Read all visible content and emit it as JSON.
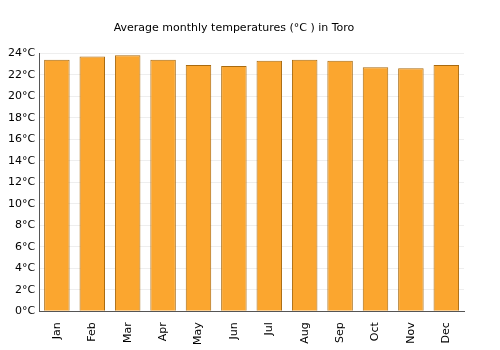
{
  "chart_data": {
    "type": "bar",
    "title": "Average monthly temperatures (°C ) in Toro",
    "categories": [
      "Jan",
      "Feb",
      "Mar",
      "Apr",
      "May",
      "Jun",
      "Jul",
      "Aug",
      "Sep",
      "Oct",
      "Nov",
      "Dec"
    ],
    "values": [
      23.4,
      23.7,
      23.8,
      23.4,
      22.9,
      22.8,
      23.3,
      23.4,
      23.3,
      22.7,
      22.6,
      22.9
    ],
    "color": "#fba62f",
    "ylim": [
      0,
      24
    ],
    "yticks": [
      {
        "value": 0,
        "label": "0°C"
      },
      {
        "value": 2,
        "label": "2°C"
      },
      {
        "value": 4,
        "label": "4°C"
      },
      {
        "value": 6,
        "label": "6°C"
      },
      {
        "value": 8,
        "label": "8°C"
      },
      {
        "value": 10,
        "label": "10°C"
      },
      {
        "value": 12,
        "label": "12°C"
      },
      {
        "value": 14,
        "label": "14°C"
      },
      {
        "value": 16,
        "label": "16°C"
      },
      {
        "value": 18,
        "label": "18°C"
      },
      {
        "value": 20,
        "label": "20°C"
      },
      {
        "value": 22,
        "label": "22°C"
      },
      {
        "value": 24,
        "label": "24°C"
      }
    ],
    "grid": true
  }
}
